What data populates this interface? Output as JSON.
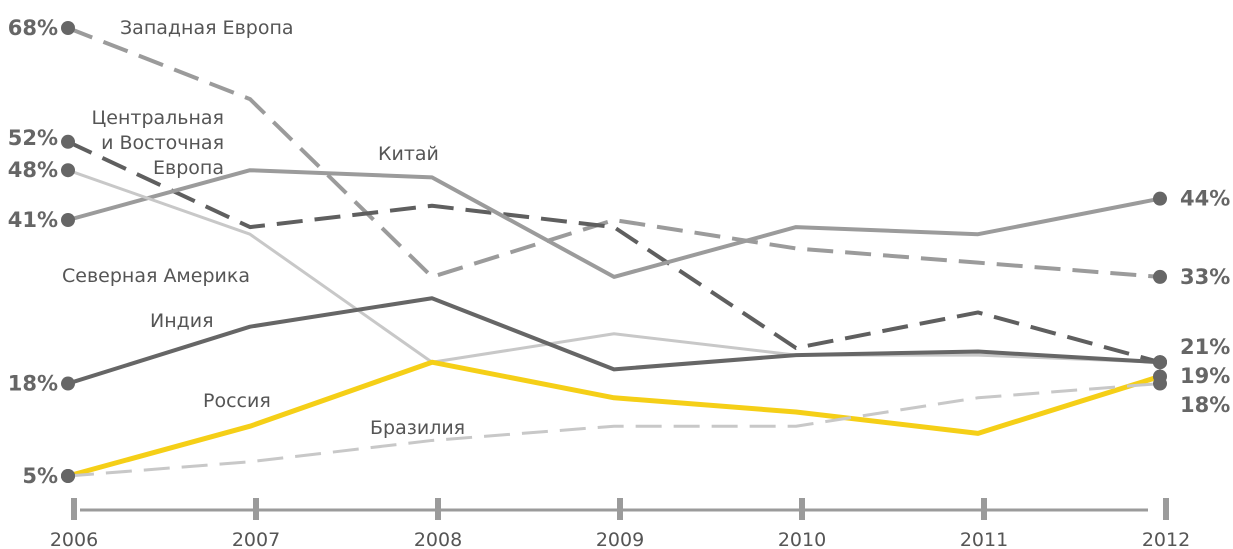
{
  "chart_data": {
    "type": "line",
    "x": [
      2006,
      2007,
      2008,
      2009,
      2010,
      2011,
      2012
    ],
    "x_tick_labels": [
      "2006",
      "2007",
      "2008",
      "2009",
      "2010",
      "2011",
      "2012"
    ],
    "ylim": [
      0,
      70
    ],
    "grid": false,
    "series": [
      {
        "name": "Западная Европа",
        "label_lines": [
          "Западная Европа"
        ],
        "values": [
          68,
          58,
          33,
          41,
          37,
          35,
          33
        ],
        "color": "#9b9b9b",
        "dash": "dashed",
        "width": 4
      },
      {
        "name": "Центральная и Восточная Европа",
        "label_lines": [
          "Центральная",
          "и Восточная",
          "Европа"
        ],
        "values": [
          52,
          40,
          43,
          40,
          23,
          28,
          21
        ],
        "color": "#5f5f5f",
        "dash": "dashed",
        "width": 4
      },
      {
        "name": "Китай",
        "label_lines": [
          "Китай"
        ],
        "values": [
          41,
          48,
          47,
          33,
          40,
          39,
          44
        ],
        "color": "#9b9b9b",
        "dash": "solid",
        "width": 4
      },
      {
        "name": "Северная Америка",
        "label_lines": [
          "Северная Америка"
        ],
        "values": [
          48,
          39,
          21,
          25,
          22,
          22,
          21
        ],
        "color": "#c8c8c8",
        "dash": "solid",
        "width": 3
      },
      {
        "name": "Индия",
        "label_lines": [
          "Индия"
        ],
        "values": [
          18,
          26,
          30,
          20,
          22,
          22.5,
          21
        ],
        "color": "#666666",
        "dash": "solid",
        "width": 4
      },
      {
        "name": "Россия",
        "label_lines": [
          "Россия"
        ],
        "values": [
          5,
          12,
          21,
          16,
          14,
          11,
          19
        ],
        "color": "#f5cf17",
        "dash": "solid",
        "width": 5
      },
      {
        "name": "Бразилия",
        "label_lines": [
          "Бразилия"
        ],
        "values": [
          5,
          7,
          10,
          12,
          12,
          16,
          18
        ],
        "color": "#c8c8c8",
        "dash": "dashed",
        "width": 3
      }
    ],
    "start_labels": [
      {
        "text": "68%",
        "value": 68
      },
      {
        "text": "52%",
        "value": 52
      },
      {
        "text": "48%",
        "value": 48
      },
      {
        "text": "41%",
        "value": 41
      },
      {
        "text": "18%",
        "value": 18
      },
      {
        "text": "5%",
        "value": 5
      }
    ],
    "end_labels": [
      {
        "text": "44%",
        "value": 44
      },
      {
        "text": "33%",
        "value": 33
      },
      {
        "text": "21%",
        "value": 21
      },
      {
        "text": "19%",
        "value": 19
      },
      {
        "text": "18%",
        "value": 18
      }
    ]
  }
}
